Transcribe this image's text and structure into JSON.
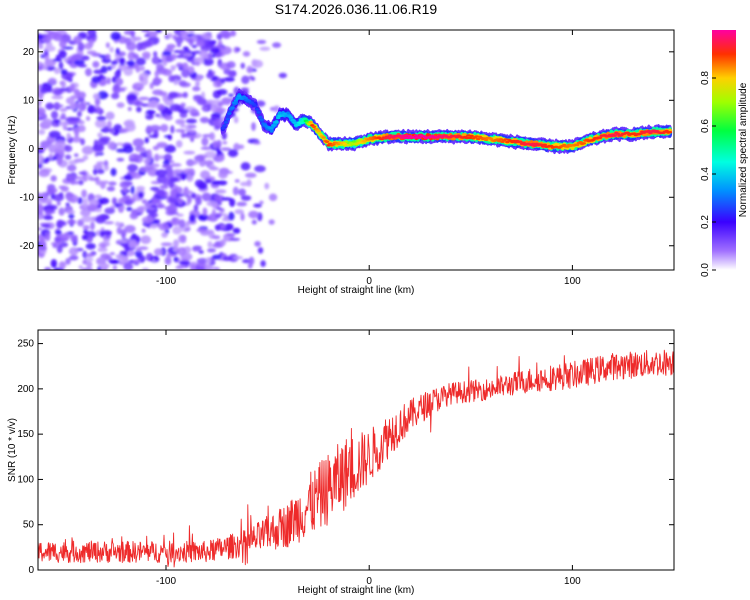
{
  "title": "S174.2026.036.11.06.R19",
  "chart_data": [
    {
      "type": "heatmap",
      "xlabel": "Height of straight line (km)",
      "ylabel": "Frequency (Hz)",
      "xlim": [
        -163,
        150
      ],
      "ylim": [
        -25,
        24.5
      ],
      "xticks": [
        -100,
        0,
        100
      ],
      "yticks": [
        -20,
        -10,
        0,
        10,
        20
      ],
      "colorbar": {
        "label": "Normalized spectral amplitude",
        "range": [
          0,
          1
        ],
        "ticks": [
          0,
          0.2,
          0.4,
          0.6,
          0.8
        ]
      },
      "noise_region_x_max": -70,
      "ridge": {
        "x": [
          -72,
          -68,
          -64,
          -60,
          -56,
          -52,
          -48,
          -44,
          -40,
          -36,
          -32,
          -28,
          -24,
          -20,
          -16,
          -12,
          -8,
          -4,
          0,
          10,
          20,
          30,
          40,
          50,
          60,
          70,
          80,
          90,
          100,
          110,
          120,
          130,
          140,
          148
        ],
        "freq": [
          4,
          8,
          11,
          10,
          9,
          5,
          4,
          7,
          7,
          5,
          6,
          5,
          3,
          1,
          1,
          1,
          1,
          1.5,
          2,
          2.5,
          2.5,
          2.5,
          2.5,
          2.5,
          2,
          1.5,
          1,
          0.5,
          0.5,
          2,
          3,
          3,
          3.5,
          3.5
        ],
        "amplitude": [
          0.25,
          0.3,
          0.35,
          0.3,
          0.25,
          0.3,
          0.35,
          0.4,
          0.35,
          0.4,
          0.5,
          0.9,
          0.8,
          0.9,
          0.85,
          0.8,
          0.7,
          0.8,
          0.85,
          0.95,
          1.0,
          1.0,
          0.95,
          0.9,
          0.85,
          0.9,
          0.95,
          0.9,
          0.85,
          0.9,
          0.95,
          0.9,
          0.95,
          0.9
        ]
      }
    },
    {
      "type": "line",
      "xlabel": "Height of straight line (km)",
      "ylabel": "SNR (10 * v/v)",
      "xlim": [
        -163,
        150
      ],
      "ylim": [
        0,
        265
      ],
      "xticks": [
        -100,
        0,
        100
      ],
      "yticks": [
        0,
        50,
        100,
        150,
        200,
        250
      ],
      "series": [
        {
          "name": "SNR",
          "color": "#ee2a2a",
          "trend_x": [
            -163,
            -120,
            -80,
            -60,
            -40,
            -30,
            -20,
            -10,
            0,
            10,
            20,
            30,
            40,
            60,
            80,
            100,
            120,
            150
          ],
          "trend_y": [
            20,
            20,
            20,
            30,
            50,
            70,
            90,
            110,
            125,
            150,
            170,
            185,
            195,
            200,
            210,
            215,
            225,
            230
          ],
          "noise_amplitude": [
            12,
            12,
            12,
            15,
            25,
            35,
            40,
            40,
            30,
            25,
            18,
            15,
            12,
            12,
            14,
            15,
            15,
            15
          ]
        }
      ]
    }
  ]
}
